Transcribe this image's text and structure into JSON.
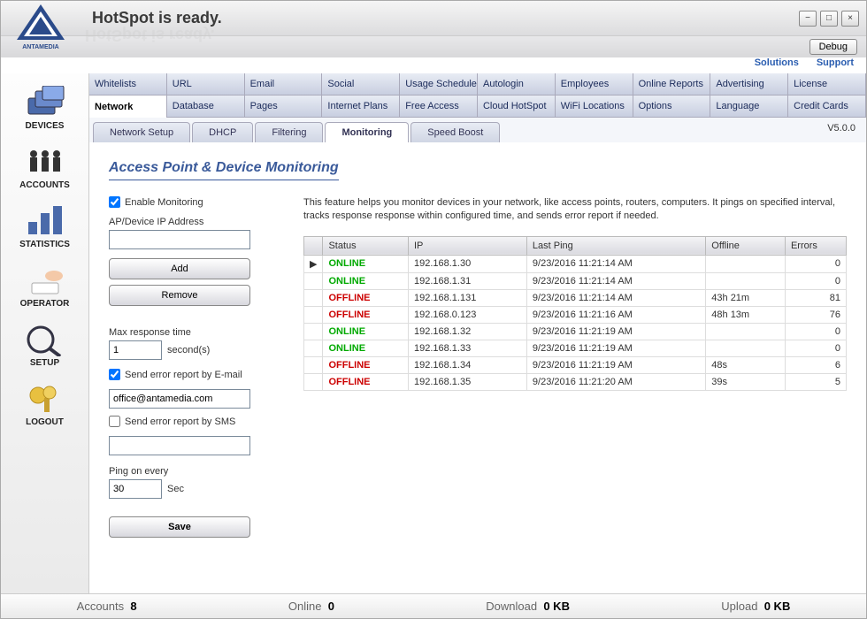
{
  "brand": "ANTAMEDIA",
  "app_title": "HotSpot is ready.",
  "window_buttons": {
    "minimize": "−",
    "maximize": "□",
    "close": "×"
  },
  "debug_label": "Debug",
  "links": {
    "solutions": "Solutions",
    "support": "Support"
  },
  "sidebar": [
    {
      "label": "DEVICES",
      "active": true
    },
    {
      "label": "ACCOUNTS"
    },
    {
      "label": "STATISTICS"
    },
    {
      "label": "OPERATOR"
    },
    {
      "label": "SETUP"
    },
    {
      "label": "LOGOUT"
    }
  ],
  "tab_row1": [
    "Whitelists",
    "URL",
    "Email",
    "Social",
    "Usage Schedule",
    "Autologin",
    "Employees",
    "Online Reports",
    "Advertising",
    "License"
  ],
  "tab_row2": [
    "Network",
    "Database",
    "Pages",
    "Internet Plans",
    "Free Access",
    "Cloud HotSpot",
    "WiFi Locations",
    "Options",
    "Language",
    "Credit Cards"
  ],
  "tab_row2_active": 0,
  "subtabs": [
    "Network Setup",
    "DHCP",
    "Filtering",
    "Monitoring",
    "Speed Boost"
  ],
  "subtab_active": 3,
  "version": "V5.0.0",
  "page_title": "Access Point & Device Monitoring",
  "enable_monitoring": {
    "label": "Enable Monitoring",
    "checked": true
  },
  "ip_label": "AP/Device IP Address",
  "ip_value": "",
  "add_btn": "Add",
  "remove_btn": "Remove",
  "max_resp_label": "Max response time",
  "max_resp_value": "1",
  "seconds_label": "second(s)",
  "email_report": {
    "label": "Send error report by E-mail",
    "checked": true,
    "value": "office@antamedia.com"
  },
  "sms_report": {
    "label": "Send error report by SMS",
    "checked": false,
    "value": ""
  },
  "ping_label": "Ping on every",
  "ping_value": "30",
  "sec_label": "Sec",
  "save_btn": "Save",
  "description": "This feature helps you monitor devices in your network, like access points, routers, computers. It pings on specified interval, tracks response response within configured time, and sends error report if needed.",
  "table": {
    "columns": [
      "Status",
      "IP",
      "Last Ping",
      "Offline",
      "Errors"
    ],
    "rows": [
      {
        "marker": "▶",
        "status": "ONLINE",
        "ip": "192.168.1.30",
        "last": "9/23/2016 11:21:14 AM",
        "offline": "",
        "errors": "0"
      },
      {
        "marker": "",
        "status": "ONLINE",
        "ip": "192.168.1.31",
        "last": "9/23/2016 11:21:14 AM",
        "offline": "",
        "errors": "0"
      },
      {
        "marker": "",
        "status": "OFFLINE",
        "ip": "192.168.1.131",
        "last": "9/23/2016 11:21:14 AM",
        "offline": "43h 21m",
        "errors": "81"
      },
      {
        "marker": "",
        "status": "OFFLINE",
        "ip": "192.168.0.123",
        "last": "9/23/2016 11:21:16 AM",
        "offline": "48h 13m",
        "errors": "76"
      },
      {
        "marker": "",
        "status": "ONLINE",
        "ip": "192.168.1.32",
        "last": "9/23/2016 11:21:19 AM",
        "offline": "",
        "errors": "0"
      },
      {
        "marker": "",
        "status": "ONLINE",
        "ip": "192.168.1.33",
        "last": "9/23/2016 11:21:19 AM",
        "offline": "",
        "errors": "0"
      },
      {
        "marker": "",
        "status": "OFFLINE",
        "ip": "192.168.1.34",
        "last": "9/23/2016 11:21:19 AM",
        "offline": "48s",
        "errors": "6"
      },
      {
        "marker": "",
        "status": "OFFLINE",
        "ip": "192.168.1.35",
        "last": "9/23/2016 11:21:20 AM",
        "offline": "39s",
        "errors": "5"
      }
    ]
  },
  "statusbar": {
    "accounts_label": "Accounts",
    "accounts_value": "8",
    "online_label": "Online",
    "online_value": "0",
    "download_label": "Download",
    "download_value": "0 KB",
    "upload_label": "Upload",
    "upload_value": "0 KB"
  }
}
